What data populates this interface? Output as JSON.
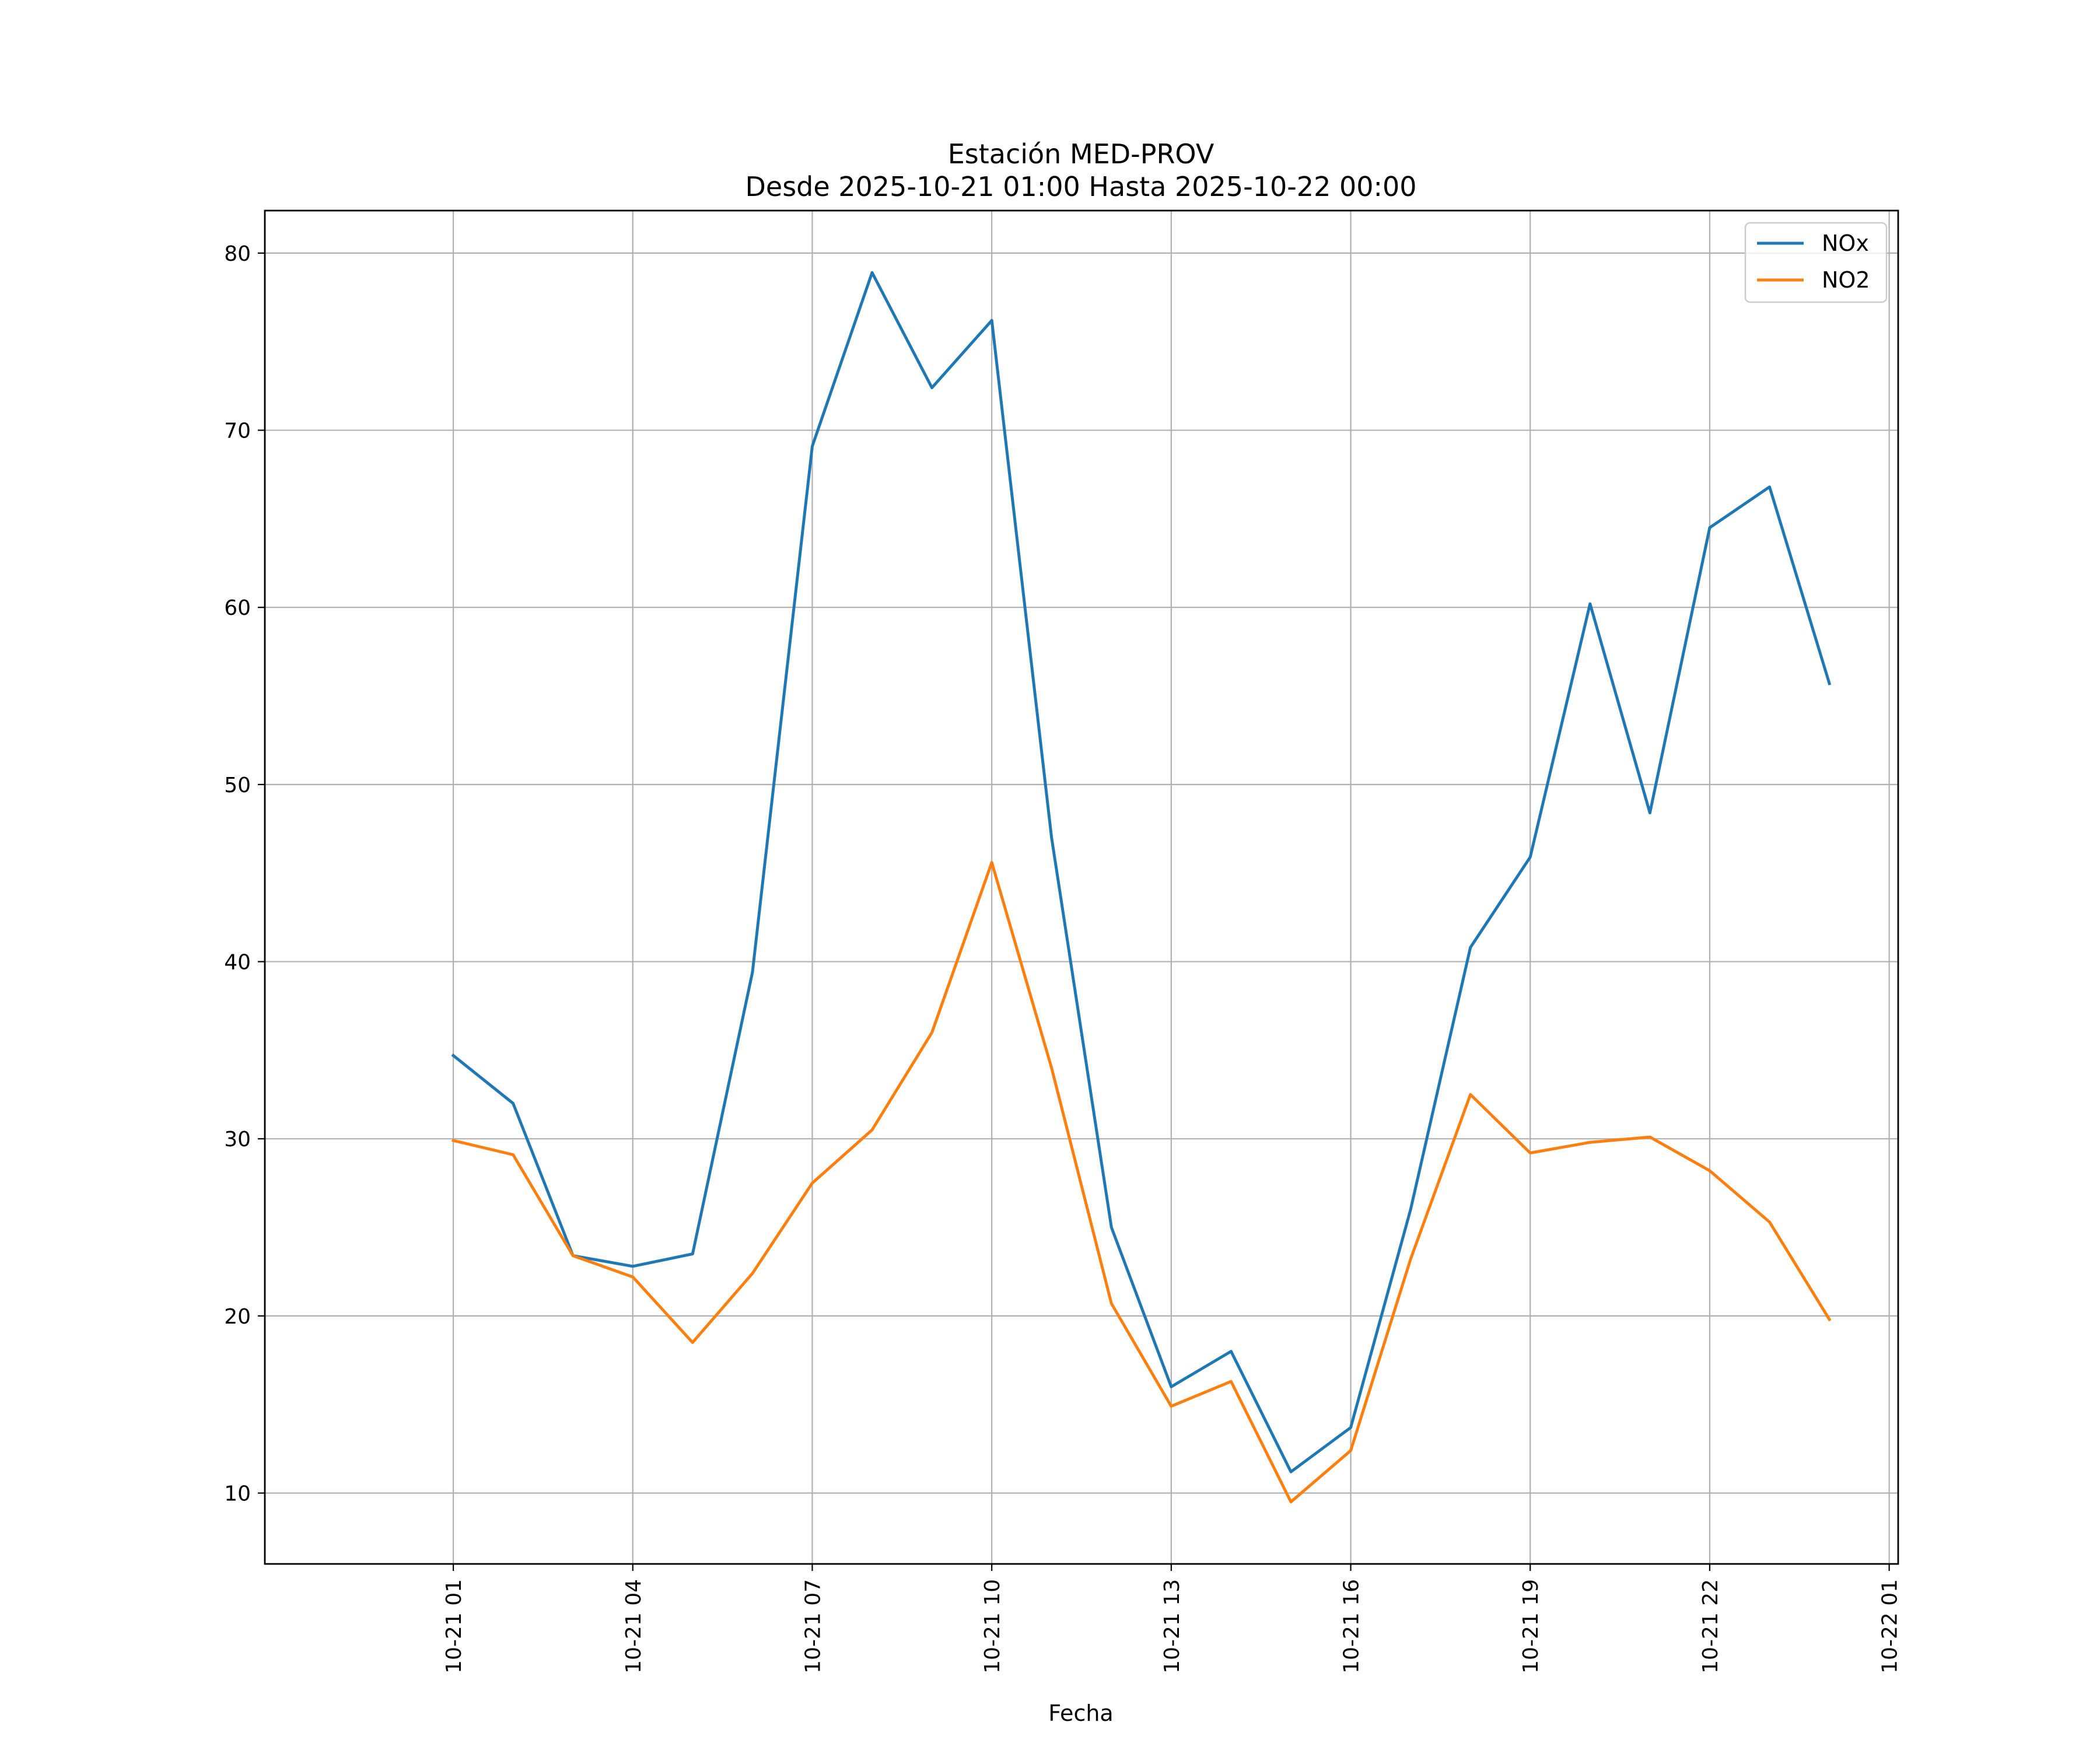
{
  "chart_data": {
    "type": "line",
    "title": "Estación MED-PROV",
    "subtitle": "Desde 2025-10-21 01:00 Hasta 2025-10-22 00:00",
    "xlabel": "Fecha",
    "ylabel": "",
    "x": [
      "2025-10-21 01:00",
      "2025-10-21 02:00",
      "2025-10-21 03:00",
      "2025-10-21 04:00",
      "2025-10-21 05:00",
      "2025-10-21 06:00",
      "2025-10-21 07:00",
      "2025-10-21 08:00",
      "2025-10-21 09:00",
      "2025-10-21 10:00",
      "2025-10-21 11:00",
      "2025-10-21 12:00",
      "2025-10-21 13:00",
      "2025-10-21 14:00",
      "2025-10-21 15:00",
      "2025-10-21 16:00",
      "2025-10-21 17:00",
      "2025-10-21 18:00",
      "2025-10-21 19:00",
      "2025-10-21 20:00",
      "2025-10-21 21:00",
      "2025-10-21 22:00",
      "2025-10-21 23:00",
      "2025-10-22 00:00"
    ],
    "xlim": [
      "2025-10-20 21:51",
      "2025-10-22 01:09"
    ],
    "ylim": [
      6.0,
      82.4
    ],
    "xticks": [
      "10-21 01",
      "10-21 04",
      "10-21 07",
      "10-21 10",
      "10-21 13",
      "10-21 16",
      "10-21 19",
      "10-21 22",
      "10-22 01"
    ],
    "yticks": [
      10,
      20,
      30,
      40,
      50,
      60,
      70,
      80
    ],
    "grid": true,
    "legend": "top-right",
    "series": [
      {
        "name": "NOx",
        "color": "#1f77b4",
        "values": [
          34.7,
          32.0,
          23.4,
          22.8,
          23.5,
          39.4,
          69.1,
          78.9,
          72.4,
          76.2,
          47.0,
          25.0,
          16.0,
          18.0,
          11.2,
          13.7,
          26.0,
          40.8,
          45.9,
          60.2,
          48.4,
          64.5,
          66.8,
          55.7
        ]
      },
      {
        "name": "NO2",
        "color": "#ff7f0e",
        "values": [
          29.9,
          29.1,
          23.4,
          22.2,
          18.5,
          22.4,
          27.5,
          30.5,
          36.0,
          45.6,
          34.0,
          20.7,
          14.9,
          16.3,
          9.5,
          12.4,
          23.2,
          32.5,
          29.2,
          29.8,
          30.1,
          28.2,
          25.3,
          19.8
        ]
      }
    ]
  }
}
